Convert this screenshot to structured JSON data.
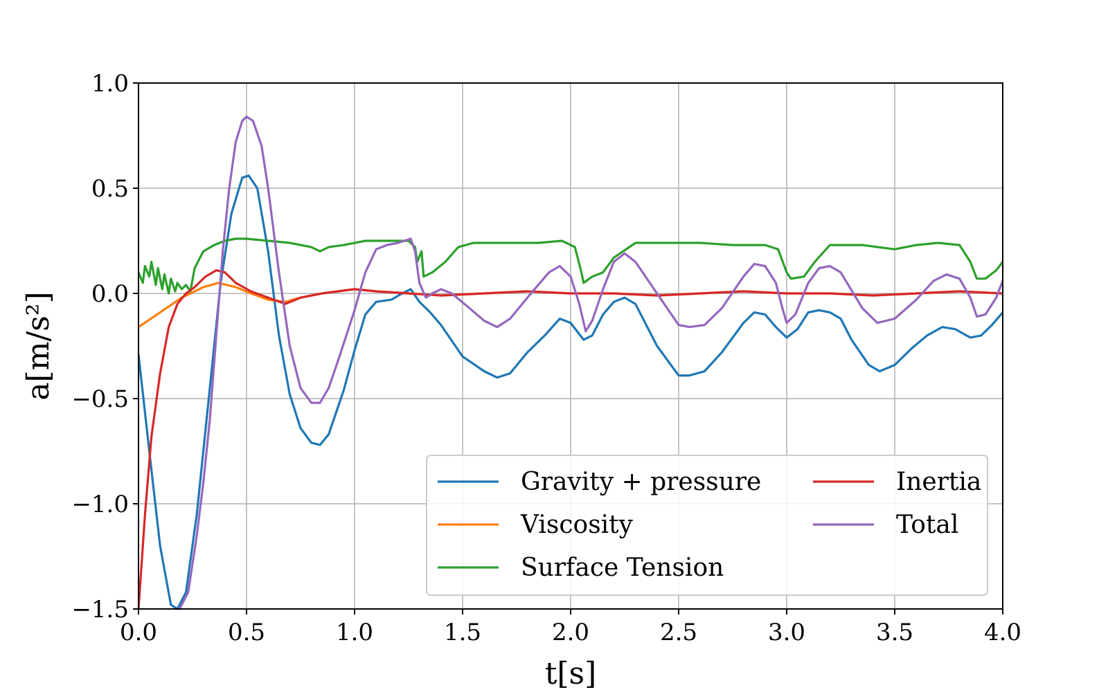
{
  "chart_data": {
    "type": "line",
    "xlabel": "t[s]",
    "ylabel": "a[m/s²]",
    "xlim": [
      0.0,
      4.0
    ],
    "ylim": [
      -1.5,
      1.0
    ],
    "xticks": [
      0.0,
      0.5,
      1.0,
      1.5,
      2.0,
      2.5,
      3.0,
      3.5,
      4.0
    ],
    "xtick_labels": [
      "0.0",
      "0.5",
      "1.0",
      "1.5",
      "2.0",
      "2.5",
      "3.0",
      "3.5",
      "4.0"
    ],
    "yticks": [
      1.0,
      0.5,
      0.0,
      -0.5,
      -1.0,
      -1.5
    ],
    "ytick_labels": [
      "1.0",
      "0.5",
      "0.0",
      "−0.5",
      "−1.0",
      "−1.5"
    ],
    "grid": true,
    "legend": {
      "placement": "lower-right",
      "columns": 2
    },
    "series": [
      {
        "name": "Gravity + pressure",
        "color": "#1f77b4",
        "points": [
          [
            0.0,
            -0.29
          ],
          [
            0.05,
            -0.75
          ],
          [
            0.1,
            -1.2
          ],
          [
            0.15,
            -1.48
          ],
          [
            0.18,
            -1.5
          ],
          [
            0.22,
            -1.42
          ],
          [
            0.27,
            -1.05
          ],
          [
            0.33,
            -0.45
          ],
          [
            0.38,
            0.05
          ],
          [
            0.43,
            0.38
          ],
          [
            0.48,
            0.55
          ],
          [
            0.51,
            0.56
          ],
          [
            0.55,
            0.5
          ],
          [
            0.6,
            0.2
          ],
          [
            0.65,
            -0.2
          ],
          [
            0.7,
            -0.48
          ],
          [
            0.75,
            -0.64
          ],
          [
            0.8,
            -0.71
          ],
          [
            0.84,
            -0.72
          ],
          [
            0.88,
            -0.67
          ],
          [
            0.95,
            -0.46
          ],
          [
            1.0,
            -0.27
          ],
          [
            1.05,
            -0.1
          ],
          [
            1.1,
            -0.04
          ],
          [
            1.17,
            -0.03
          ],
          [
            1.22,
            0.0
          ],
          [
            1.26,
            0.02
          ],
          [
            1.3,
            -0.04
          ],
          [
            1.35,
            -0.09
          ],
          [
            1.4,
            -0.15
          ],
          [
            1.5,
            -0.3
          ],
          [
            1.6,
            -0.37
          ],
          [
            1.66,
            -0.4
          ],
          [
            1.72,
            -0.38
          ],
          [
            1.8,
            -0.28
          ],
          [
            1.88,
            -0.2
          ],
          [
            1.95,
            -0.12
          ],
          [
            2.0,
            -0.14
          ],
          [
            2.06,
            -0.22
          ],
          [
            2.1,
            -0.2
          ],
          [
            2.15,
            -0.1
          ],
          [
            2.2,
            -0.04
          ],
          [
            2.25,
            -0.02
          ],
          [
            2.3,
            -0.05
          ],
          [
            2.4,
            -0.25
          ],
          [
            2.5,
            -0.39
          ],
          [
            2.55,
            -0.39
          ],
          [
            2.62,
            -0.37
          ],
          [
            2.7,
            -0.28
          ],
          [
            2.8,
            -0.14
          ],
          [
            2.85,
            -0.09
          ],
          [
            2.9,
            -0.1
          ],
          [
            2.95,
            -0.16
          ],
          [
            3.0,
            -0.21
          ],
          [
            3.05,
            -0.17
          ],
          [
            3.1,
            -0.09
          ],
          [
            3.15,
            -0.08
          ],
          [
            3.2,
            -0.09
          ],
          [
            3.25,
            -0.12
          ],
          [
            3.3,
            -0.22
          ],
          [
            3.38,
            -0.34
          ],
          [
            3.43,
            -0.37
          ],
          [
            3.5,
            -0.34
          ],
          [
            3.58,
            -0.26
          ],
          [
            3.65,
            -0.2
          ],
          [
            3.72,
            -0.16
          ],
          [
            3.78,
            -0.17
          ],
          [
            3.85,
            -0.21
          ],
          [
            3.9,
            -0.2
          ],
          [
            3.95,
            -0.15
          ],
          [
            4.0,
            -0.09
          ]
        ]
      },
      {
        "name": "Viscosity",
        "color": "#ff7f0e",
        "points": [
          [
            0.0,
            -0.16
          ],
          [
            0.1,
            -0.09
          ],
          [
            0.2,
            -0.02
          ],
          [
            0.3,
            0.03
          ],
          [
            0.37,
            0.05
          ],
          [
            0.45,
            0.03
          ],
          [
            0.52,
            0.0
          ],
          [
            0.6,
            -0.03
          ],
          [
            0.68,
            -0.04
          ],
          [
            0.75,
            -0.02
          ],
          [
            0.85,
            0.0
          ],
          [
            1.0,
            0.02
          ],
          [
            1.1,
            0.01
          ],
          [
            1.25,
            0.0
          ],
          [
            1.4,
            -0.01
          ],
          [
            1.6,
            0.0
          ],
          [
            1.8,
            0.01
          ],
          [
            2.0,
            0.0
          ],
          [
            2.2,
            0.0
          ],
          [
            2.4,
            -0.01
          ],
          [
            2.6,
            0.0
          ],
          [
            2.8,
            0.01
          ],
          [
            3.0,
            0.0
          ],
          [
            3.2,
            0.0
          ],
          [
            3.4,
            -0.01
          ],
          [
            3.6,
            0.0
          ],
          [
            3.8,
            0.01
          ],
          [
            4.0,
            0.0
          ]
        ]
      },
      {
        "name": "Surface Tension",
        "color": "#2ca02c",
        "points": [
          [
            0.0,
            0.1
          ],
          [
            0.02,
            0.05
          ],
          [
            0.03,
            0.13
          ],
          [
            0.05,
            0.08
          ],
          [
            0.06,
            0.15
          ],
          [
            0.08,
            0.04
          ],
          [
            0.09,
            0.12
          ],
          [
            0.11,
            0.02
          ],
          [
            0.12,
            0.09
          ],
          [
            0.14,
            0.0
          ],
          [
            0.15,
            0.07
          ],
          [
            0.17,
            0.01
          ],
          [
            0.18,
            0.05
          ],
          [
            0.2,
            0.02
          ],
          [
            0.22,
            0.04
          ],
          [
            0.24,
            0.01
          ],
          [
            0.26,
            0.12
          ],
          [
            0.3,
            0.2
          ],
          [
            0.35,
            0.23
          ],
          [
            0.4,
            0.25
          ],
          [
            0.45,
            0.26
          ],
          [
            0.5,
            0.26
          ],
          [
            0.6,
            0.25
          ],
          [
            0.7,
            0.24
          ],
          [
            0.8,
            0.22
          ],
          [
            0.84,
            0.2
          ],
          [
            0.88,
            0.22
          ],
          [
            0.95,
            0.23
          ],
          [
            1.05,
            0.25
          ],
          [
            1.15,
            0.25
          ],
          [
            1.25,
            0.25
          ],
          [
            1.28,
            0.22
          ],
          [
            1.29,
            0.15
          ],
          [
            1.31,
            0.2
          ],
          [
            1.32,
            0.08
          ],
          [
            1.36,
            0.1
          ],
          [
            1.42,
            0.15
          ],
          [
            1.48,
            0.22
          ],
          [
            1.55,
            0.24
          ],
          [
            1.7,
            0.24
          ],
          [
            1.85,
            0.24
          ],
          [
            1.96,
            0.25
          ],
          [
            2.02,
            0.22
          ],
          [
            2.05,
            0.1
          ],
          [
            2.06,
            0.05
          ],
          [
            2.1,
            0.08
          ],
          [
            2.15,
            0.1
          ],
          [
            2.2,
            0.17
          ],
          [
            2.3,
            0.24
          ],
          [
            2.45,
            0.24
          ],
          [
            2.6,
            0.24
          ],
          [
            2.75,
            0.23
          ],
          [
            2.9,
            0.23
          ],
          [
            2.96,
            0.21
          ],
          [
            3.0,
            0.1
          ],
          [
            3.02,
            0.07
          ],
          [
            3.08,
            0.08
          ],
          [
            3.13,
            0.15
          ],
          [
            3.2,
            0.23
          ],
          [
            3.35,
            0.23
          ],
          [
            3.5,
            0.21
          ],
          [
            3.6,
            0.23
          ],
          [
            3.7,
            0.24
          ],
          [
            3.8,
            0.23
          ],
          [
            3.85,
            0.15
          ],
          [
            3.88,
            0.07
          ],
          [
            3.92,
            0.07
          ],
          [
            3.97,
            0.11
          ],
          [
            4.0,
            0.15
          ]
        ]
      },
      {
        "name": "Inertia",
        "color": "#d62728",
        "points": [
          [
            0.0,
            -1.5
          ],
          [
            0.03,
            -1.05
          ],
          [
            0.06,
            -0.68
          ],
          [
            0.1,
            -0.38
          ],
          [
            0.14,
            -0.16
          ],
          [
            0.18,
            -0.05
          ],
          [
            0.22,
            0.0
          ],
          [
            0.26,
            0.03
          ],
          [
            0.31,
            0.08
          ],
          [
            0.36,
            0.11
          ],
          [
            0.4,
            0.1
          ],
          [
            0.45,
            0.05
          ],
          [
            0.52,
            0.01
          ],
          [
            0.6,
            -0.02
          ],
          [
            0.68,
            -0.05
          ],
          [
            0.75,
            -0.02
          ],
          [
            0.85,
            0.0
          ],
          [
            1.0,
            0.02
          ],
          [
            1.1,
            0.01
          ],
          [
            1.25,
            0.0
          ],
          [
            1.4,
            -0.01
          ],
          [
            1.6,
            0.0
          ],
          [
            1.8,
            0.01
          ],
          [
            2.0,
            0.0
          ],
          [
            2.2,
            0.0
          ],
          [
            2.4,
            -0.01
          ],
          [
            2.6,
            0.0
          ],
          [
            2.8,
            0.01
          ],
          [
            3.0,
            0.0
          ],
          [
            3.2,
            0.0
          ],
          [
            3.4,
            -0.01
          ],
          [
            3.6,
            0.0
          ],
          [
            3.8,
            0.01
          ],
          [
            4.0,
            0.0
          ]
        ]
      },
      {
        "name": "Total",
        "color": "#9467bd",
        "points": [
          [
            0.19,
            -1.5
          ],
          [
            0.23,
            -1.42
          ],
          [
            0.27,
            -1.15
          ],
          [
            0.3,
            -0.9
          ],
          [
            0.33,
            -0.6
          ],
          [
            0.36,
            -0.2
          ],
          [
            0.39,
            0.2
          ],
          [
            0.42,
            0.5
          ],
          [
            0.45,
            0.72
          ],
          [
            0.48,
            0.82
          ],
          [
            0.5,
            0.84
          ],
          [
            0.53,
            0.82
          ],
          [
            0.57,
            0.7
          ],
          [
            0.6,
            0.5
          ],
          [
            0.65,
            0.1
          ],
          [
            0.7,
            -0.25
          ],
          [
            0.75,
            -0.45
          ],
          [
            0.8,
            -0.52
          ],
          [
            0.84,
            -0.52
          ],
          [
            0.88,
            -0.45
          ],
          [
            0.93,
            -0.3
          ],
          [
            1.0,
            -0.08
          ],
          [
            1.05,
            0.1
          ],
          [
            1.1,
            0.21
          ],
          [
            1.15,
            0.23
          ],
          [
            1.2,
            0.24
          ],
          [
            1.23,
            0.25
          ],
          [
            1.26,
            0.26
          ],
          [
            1.28,
            0.2
          ],
          [
            1.3,
            0.05
          ],
          [
            1.33,
            -0.02
          ],
          [
            1.36,
            0.0
          ],
          [
            1.4,
            0.02
          ],
          [
            1.45,
            0.0
          ],
          [
            1.52,
            -0.06
          ],
          [
            1.6,
            -0.13
          ],
          [
            1.66,
            -0.16
          ],
          [
            1.72,
            -0.12
          ],
          [
            1.8,
            -0.02
          ],
          [
            1.9,
            0.1
          ],
          [
            1.95,
            0.13
          ],
          [
            2.0,
            0.08
          ],
          [
            2.04,
            -0.05
          ],
          [
            2.07,
            -0.18
          ],
          [
            2.1,
            -0.13
          ],
          [
            2.15,
            0.02
          ],
          [
            2.2,
            0.15
          ],
          [
            2.25,
            0.19
          ],
          [
            2.3,
            0.15
          ],
          [
            2.4,
            0.0
          ],
          [
            2.5,
            -0.15
          ],
          [
            2.55,
            -0.16
          ],
          [
            2.62,
            -0.15
          ],
          [
            2.7,
            -0.07
          ],
          [
            2.8,
            0.08
          ],
          [
            2.85,
            0.14
          ],
          [
            2.9,
            0.13
          ],
          [
            2.95,
            0.05
          ],
          [
            2.98,
            -0.07
          ],
          [
            3.0,
            -0.14
          ],
          [
            3.04,
            -0.1
          ],
          [
            3.1,
            0.05
          ],
          [
            3.15,
            0.12
          ],
          [
            3.2,
            0.13
          ],
          [
            3.25,
            0.1
          ],
          [
            3.35,
            -0.07
          ],
          [
            3.42,
            -0.14
          ],
          [
            3.5,
            -0.12
          ],
          [
            3.6,
            -0.03
          ],
          [
            3.68,
            0.06
          ],
          [
            3.74,
            0.09
          ],
          [
            3.8,
            0.07
          ],
          [
            3.85,
            -0.02
          ],
          [
            3.88,
            -0.11
          ],
          [
            3.92,
            -0.1
          ],
          [
            3.97,
            -0.02
          ],
          [
            4.0,
            0.06
          ]
        ]
      }
    ]
  }
}
